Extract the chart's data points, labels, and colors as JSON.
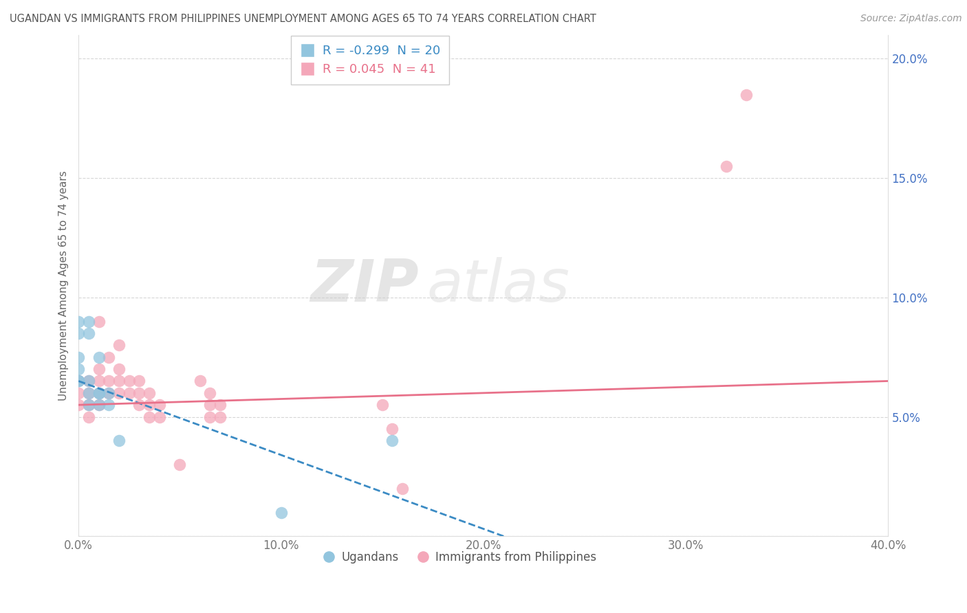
{
  "title": "UGANDAN VS IMMIGRANTS FROM PHILIPPINES UNEMPLOYMENT AMONG AGES 65 TO 74 YEARS CORRELATION CHART",
  "source": "Source: ZipAtlas.com",
  "ylabel": "Unemployment Among Ages 65 to 74 years",
  "xlim": [
    0.0,
    0.4
  ],
  "ylim": [
    0.0,
    0.21
  ],
  "xticks": [
    0.0,
    0.1,
    0.2,
    0.3,
    0.4
  ],
  "yticks": [
    0.0,
    0.05,
    0.1,
    0.15,
    0.2
  ],
  "xticklabels": [
    "0.0%",
    "10.0%",
    "20.0%",
    "30.0%",
    "40.0%"
  ],
  "yticklabels": [
    "",
    "5.0%",
    "10.0%",
    "15.0%",
    "20.0%"
  ],
  "ugandan_R": -0.299,
  "ugandan_N": 20,
  "philippines_R": 0.045,
  "philippines_N": 41,
  "ugandan_color": "#92C5DE",
  "philippines_color": "#F4A7B9",
  "ugandan_line_color": "#3B8BC4",
  "philippines_line_color": "#E8718A",
  "watermark_zip": "ZIP",
  "watermark_atlas": "atlas",
  "background_color": "#FFFFFF",
  "grid_color": "#CCCCCC",
  "ugandan_scatter": [
    [
      0.0,
      0.09
    ],
    [
      0.0,
      0.075
    ],
    [
      0.0,
      0.085
    ],
    [
      0.0,
      0.07
    ],
    [
      0.0,
      0.065
    ],
    [
      0.0,
      0.065
    ],
    [
      0.005,
      0.065
    ],
    [
      0.005,
      0.085
    ],
    [
      0.005,
      0.09
    ],
    [
      0.005,
      0.06
    ],
    [
      0.005,
      0.055
    ],
    [
      0.01,
      0.075
    ],
    [
      0.01,
      0.06
    ],
    [
      0.01,
      0.06
    ],
    [
      0.01,
      0.055
    ],
    [
      0.015,
      0.055
    ],
    [
      0.015,
      0.06
    ],
    [
      0.02,
      0.04
    ],
    [
      0.1,
      0.01
    ],
    [
      0.155,
      0.04
    ]
  ],
  "philippines_scatter": [
    [
      0.0,
      0.065
    ],
    [
      0.0,
      0.06
    ],
    [
      0.0,
      0.055
    ],
    [
      0.005,
      0.065
    ],
    [
      0.005,
      0.06
    ],
    [
      0.005,
      0.055
    ],
    [
      0.005,
      0.05
    ],
    [
      0.01,
      0.09
    ],
    [
      0.01,
      0.07
    ],
    [
      0.01,
      0.065
    ],
    [
      0.01,
      0.06
    ],
    [
      0.01,
      0.055
    ],
    [
      0.015,
      0.075
    ],
    [
      0.015,
      0.065
    ],
    [
      0.015,
      0.06
    ],
    [
      0.02,
      0.08
    ],
    [
      0.02,
      0.07
    ],
    [
      0.02,
      0.065
    ],
    [
      0.02,
      0.06
    ],
    [
      0.025,
      0.065
    ],
    [
      0.025,
      0.06
    ],
    [
      0.03,
      0.065
    ],
    [
      0.03,
      0.06
    ],
    [
      0.03,
      0.055
    ],
    [
      0.035,
      0.06
    ],
    [
      0.035,
      0.055
    ],
    [
      0.035,
      0.05
    ],
    [
      0.04,
      0.055
    ],
    [
      0.04,
      0.05
    ],
    [
      0.05,
      0.03
    ],
    [
      0.06,
      0.065
    ],
    [
      0.065,
      0.06
    ],
    [
      0.065,
      0.055
    ],
    [
      0.065,
      0.05
    ],
    [
      0.07,
      0.055
    ],
    [
      0.07,
      0.05
    ],
    [
      0.15,
      0.055
    ],
    [
      0.155,
      0.045
    ],
    [
      0.16,
      0.02
    ],
    [
      0.32,
      0.155
    ],
    [
      0.33,
      0.185
    ]
  ],
  "ugandan_line": [
    [
      0.0,
      0.065
    ],
    [
      0.21,
      0.0
    ]
  ],
  "philippines_line": [
    [
      0.0,
      0.055
    ],
    [
      0.4,
      0.065
    ]
  ]
}
